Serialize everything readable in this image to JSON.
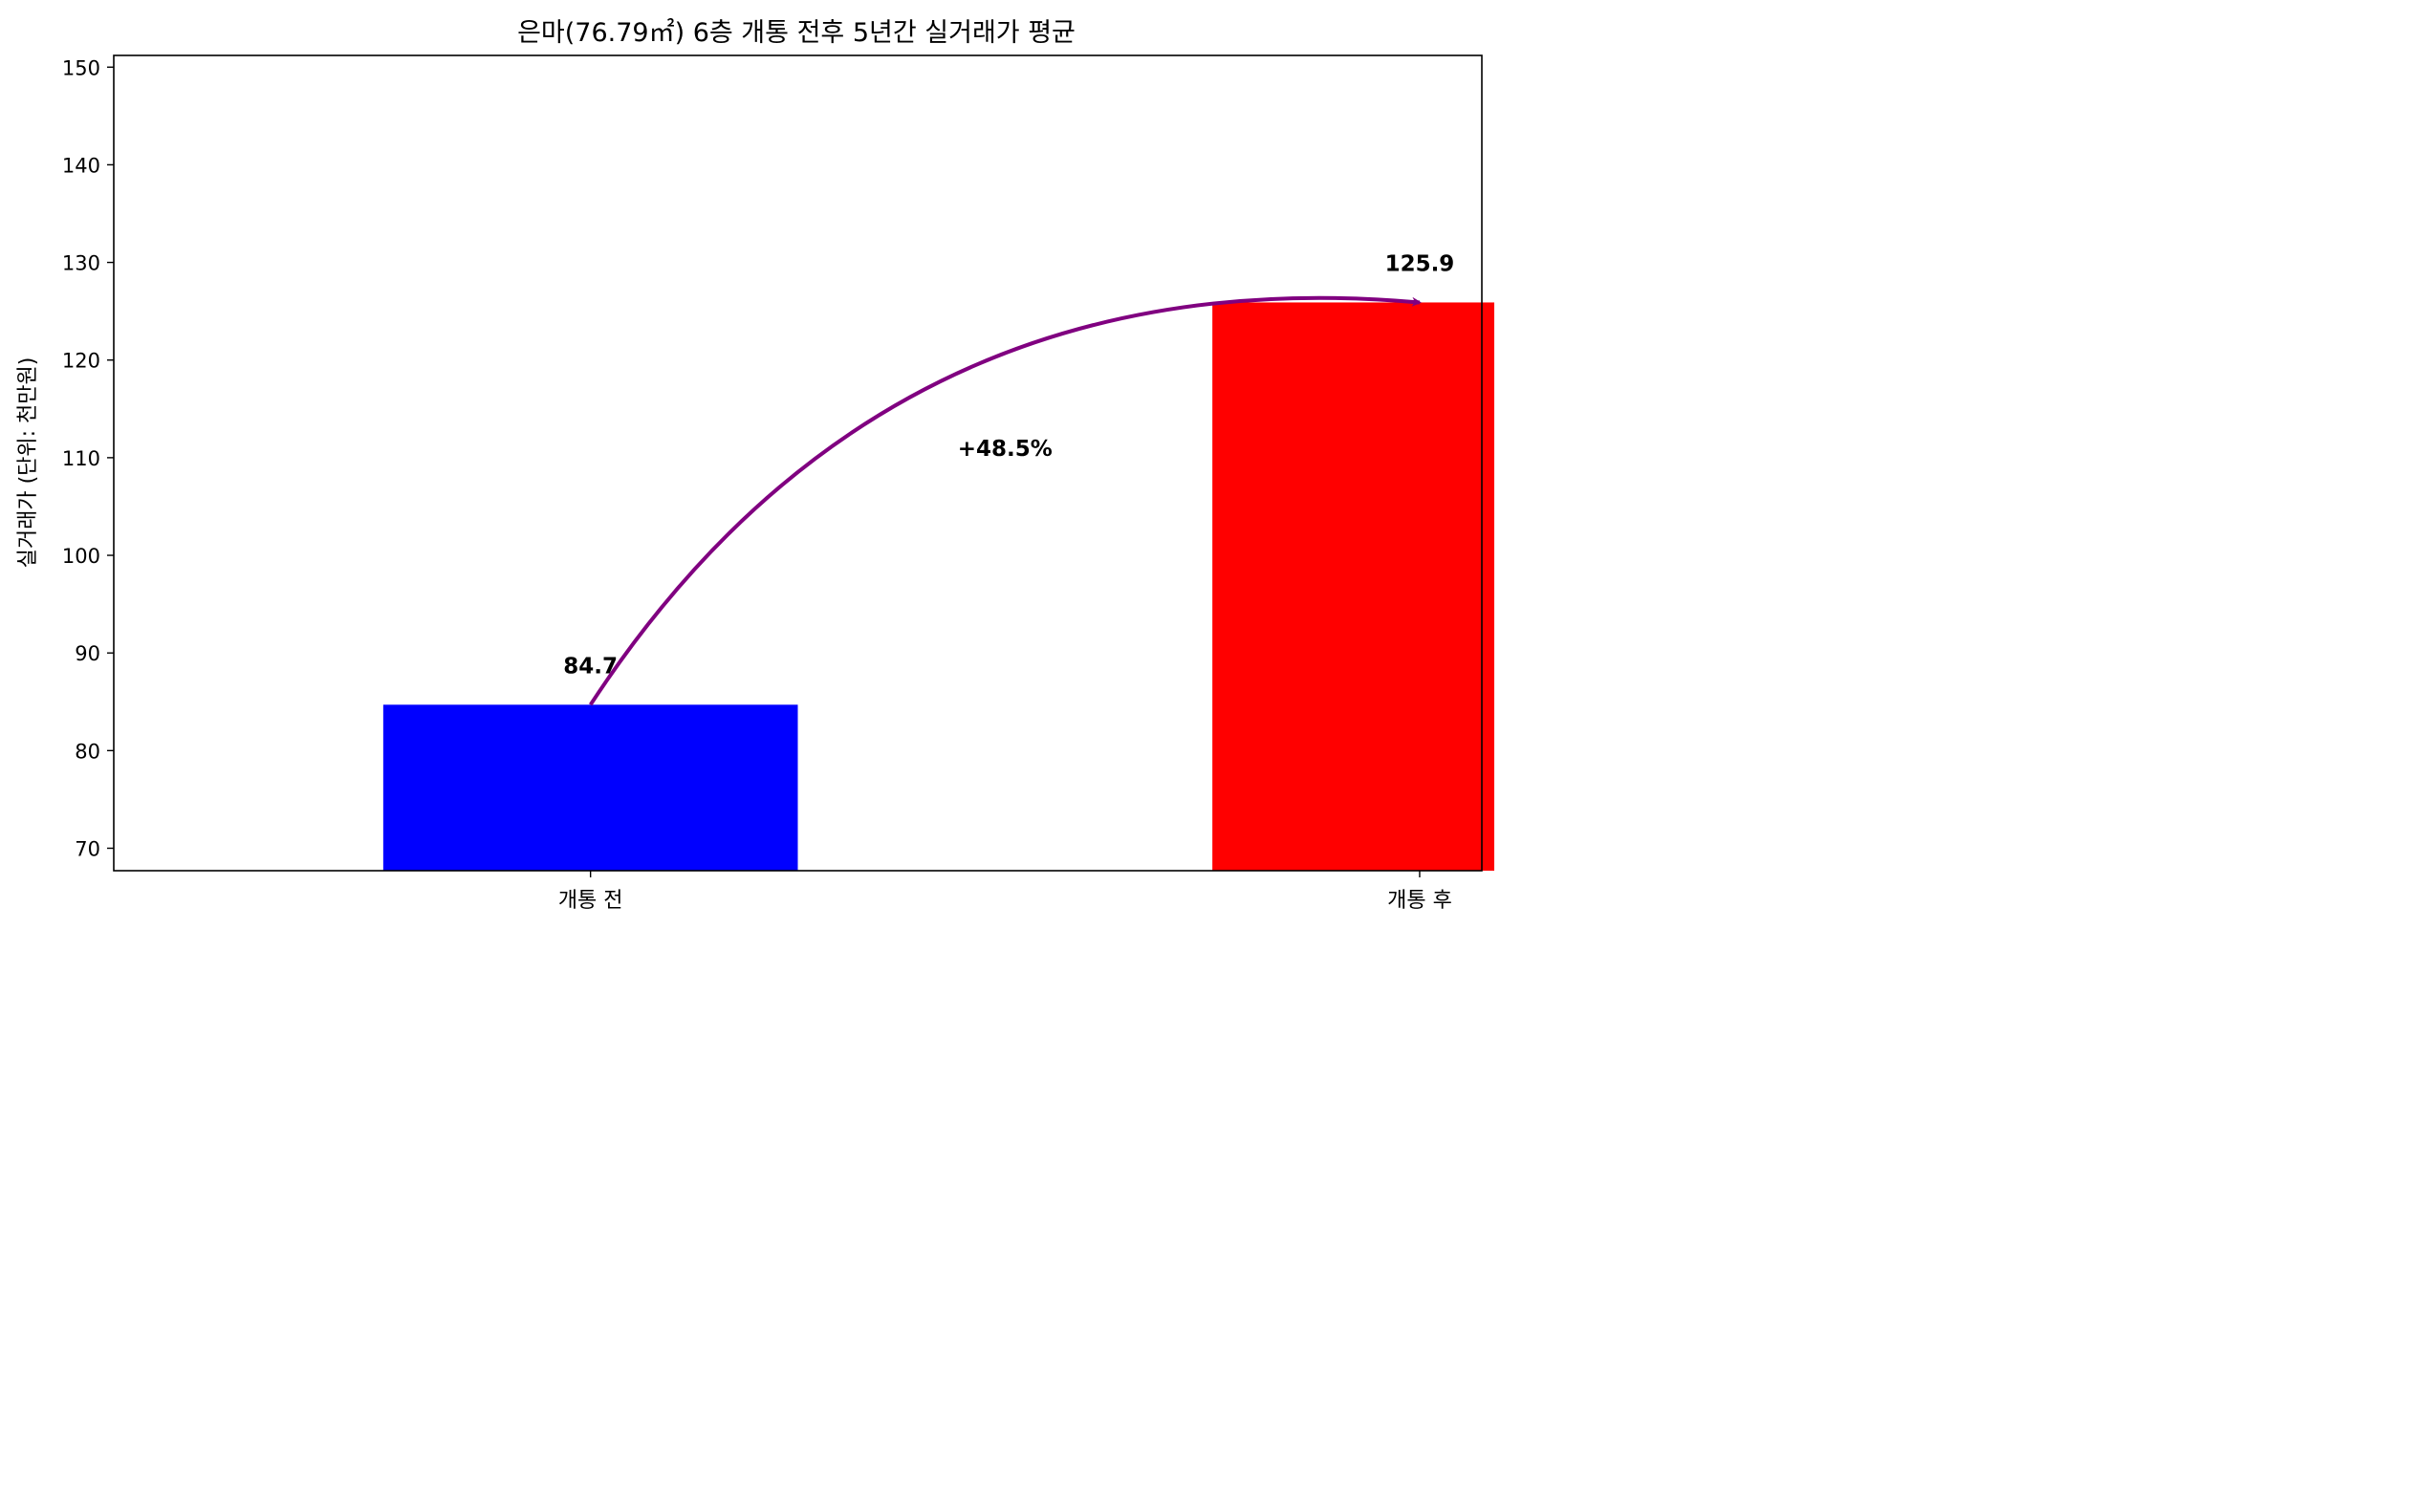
{
  "chart_data": {
    "type": "bar",
    "title": "은마(76.79㎡) 6층 개통 전후 5년간 실거래가 평균",
    "xlabel": "",
    "ylabel": "실거래가 (단위: 천만원)",
    "categories": [
      "개통 전",
      "개통 후"
    ],
    "values": [
      84.7,
      125.9
    ],
    "value_labels": [
      "84.7",
      "125.9"
    ],
    "bar_colors": [
      "#0000ff",
      "#ff0000"
    ],
    "ylim": [
      67.7,
      151.2
    ],
    "yticks": [
      70,
      80,
      90,
      100,
      110,
      120,
      130,
      140,
      150
    ],
    "grid": false,
    "annotation": {
      "text": "+48.5%",
      "arrow_from": {
        "category": "개통 전",
        "value": 84.7
      },
      "arrow_to": {
        "category": "개통 후",
        "value": 125.9
      },
      "arrow_color": "#800080",
      "text_position": {
        "x": 0.5,
        "y": 110
      }
    }
  }
}
